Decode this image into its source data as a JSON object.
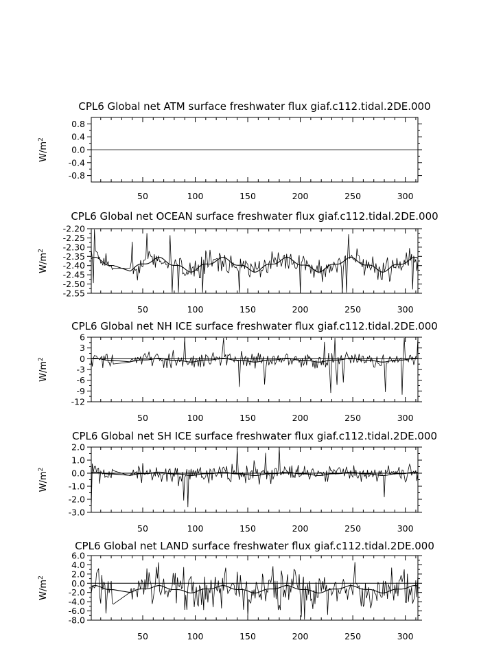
{
  "chart_data": [
    {
      "type": "line",
      "title": "CPL6 Global net ATM surface freshwater flux giaf.c112.tidal.2DE.000",
      "ylabel": "W/m2",
      "xlim": [
        1,
        312
      ],
      "ylim": [
        -1.0,
        1.0
      ],
      "x_ticks": [
        "50",
        "100",
        "150",
        "200",
        "250",
        "300"
      ],
      "y_ticks": [
        "0.8",
        "0.4",
        "0.0",
        "-0.4",
        "-0.8"
      ],
      "y_tick_values": [
        0.8,
        0.4,
        0.0,
        -0.4,
        -0.8
      ],
      "zero_line": false,
      "series": [
        {
          "kind": "flat",
          "level": 0.0
        }
      ]
    },
    {
      "type": "line",
      "title": "CPL6 Global net OCEAN surface freshwater flux giaf.c112.tidal.2DE.000",
      "ylabel": "W/m2",
      "xlim": [
        1,
        312
      ],
      "ylim": [
        -2.55,
        -2.2
      ],
      "x_ticks": [
        "50",
        "100",
        "150",
        "200",
        "250",
        "300"
      ],
      "y_ticks": [
        "-2.20",
        "-2.25",
        "-2.30",
        "-2.35",
        "-2.40",
        "-2.45",
        "-2.50",
        "-2.55"
      ],
      "y_tick_values": [
        -2.2,
        -2.25,
        -2.3,
        -2.35,
        -2.4,
        -2.45,
        -2.5,
        -2.55
      ],
      "zero_line": false,
      "series": [
        {
          "kind": "noisy",
          "base": -2.395,
          "seasonal_amp": 0.03,
          "noise": 0.045,
          "spike": 0.2,
          "gap": [
            22,
            38
          ]
        },
        {
          "kind": "smooth",
          "base": -2.395,
          "seasonal_amp": 0.03,
          "gap": [
            22,
            38
          ]
        }
      ]
    },
    {
      "type": "line",
      "title": "CPL6 Global net NH ICE surface freshwater flux giaf.c112.tidal.2DE.000",
      "ylabel": "W/m2",
      "xlim": [
        1,
        312
      ],
      "ylim": [
        -12,
        6
      ],
      "x_ticks": [
        "50",
        "100",
        "150",
        "200",
        "250",
        "300"
      ],
      "y_ticks": [
        "6",
        "3",
        "0",
        "-3",
        "-6",
        "-9",
        "-12"
      ],
      "y_tick_values": [
        6,
        3,
        0,
        -3,
        -6,
        -9,
        -12
      ],
      "zero_line": true,
      "series": [
        {
          "kind": "noisy",
          "base": -0.4,
          "seasonal_amp": 0.3,
          "noise": 1.6,
          "spike": 8.5,
          "gap": [
            22,
            38
          ]
        },
        {
          "kind": "smooth",
          "base": -0.4,
          "seasonal_amp": 0.4,
          "gap": [
            22,
            38
          ]
        }
      ]
    },
    {
      "type": "line",
      "title": "CPL6 Global net SH ICE surface freshwater flux giaf.c112.tidal.2DE.000",
      "ylabel": "W/m2",
      "xlim": [
        1,
        312
      ],
      "ylim": [
        -3.0,
        2.0
      ],
      "x_ticks": [
        "50",
        "100",
        "150",
        "200",
        "250",
        "300"
      ],
      "y_ticks": [
        "2.0",
        "1.0",
        "0.0",
        "-1.0",
        "-2.0",
        "-3.0"
      ],
      "y_tick_values": [
        2.0,
        1.0,
        0.0,
        -1.0,
        -2.0,
        -3.0
      ],
      "zero_line": true,
      "series": [
        {
          "kind": "noisy",
          "base": -0.05,
          "seasonal_amp": 0.1,
          "noise": 0.5,
          "spike": 1.8,
          "gap": [
            22,
            38
          ],
          "start": -2.7
        },
        {
          "kind": "smooth",
          "base": -0.05,
          "seasonal_amp": 0.1,
          "gap": [
            22,
            38
          ]
        }
      ]
    },
    {
      "type": "line",
      "title": "CPL6 Global net LAND surface freshwater flux giaf.c112.tidal.2DE.000",
      "ylabel": "W/m2",
      "xlim": [
        1,
        312
      ],
      "ylim": [
        -8.0,
        6.0
      ],
      "x_ticks": [
        "50",
        "100",
        "150",
        "200",
        "250",
        "300"
      ],
      "y_ticks": [
        "6.0",
        "4.0",
        "2.0",
        "0.0",
        "-2.0",
        "-4.0",
        "-6.0",
        "-8.0"
      ],
      "y_tick_values": [
        6.0,
        4.0,
        2.0,
        0.0,
        -2.0,
        -4.0,
        -6.0,
        -8.0
      ],
      "zero_line": true,
      "series": [
        {
          "kind": "noisy",
          "base": -1.3,
          "seasonal_amp": 0.6,
          "noise": 3.2,
          "spike": 5.5,
          "gap": [
            22,
            38
          ]
        },
        {
          "kind": "smooth",
          "base": -1.3,
          "seasonal_amp": 0.6,
          "gap": [
            22,
            38
          ]
        }
      ]
    }
  ]
}
